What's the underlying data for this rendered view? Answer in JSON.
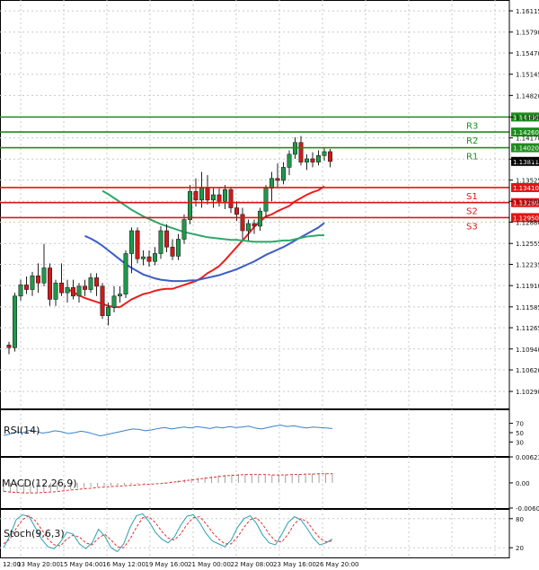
{
  "chart_data": {
    "type": "candlestick",
    "price_axis": {
      "range": [
        1.1003,
        1.16281
      ],
      "ticks": [
        "1.16115",
        "1.15790",
        "1.15470",
        "1.15145",
        "1.14820",
        "1.14490",
        "1.14170",
        "1.13845",
        "1.13525",
        "1.13200",
        "1.12880",
        "1.12555",
        "1.12235",
        "1.11910",
        "1.11585",
        "1.11265",
        "1.10940",
        "1.10620",
        "1.10290"
      ]
    },
    "time_axis": {
      "labels": [
        "12:00",
        "13 May 20:00",
        "15 May 04:00",
        "16 May 12:00",
        "19 May 16:00",
        "21 May 00:00",
        "22 May 08:00",
        "23 May 16:00",
        "26 May 20:00"
      ]
    },
    "candles": [
      {
        "o": 1.11,
        "h": 1.1105,
        "l": 1.1086,
        "c": 1.1096
      },
      {
        "o": 1.1096,
        "h": 1.118,
        "l": 1.109,
        "c": 1.1175
      },
      {
        "o": 1.1175,
        "h": 1.12,
        "l": 1.1168,
        "c": 1.1192
      },
      {
        "o": 1.1192,
        "h": 1.1205,
        "l": 1.1178,
        "c": 1.1185
      },
      {
        "o": 1.1185,
        "h": 1.1212,
        "l": 1.1175,
        "c": 1.1206
      },
      {
        "o": 1.1206,
        "h": 1.1225,
        "l": 1.118,
        "c": 1.1195
      },
      {
        "o": 1.1195,
        "h": 1.1255,
        "l": 1.119,
        "c": 1.1218
      },
      {
        "o": 1.1218,
        "h": 1.1225,
        "l": 1.116,
        "c": 1.117
      },
      {
        "o": 1.117,
        "h": 1.12,
        "l": 1.116,
        "c": 1.1195
      },
      {
        "o": 1.1195,
        "h": 1.1225,
        "l": 1.1175,
        "c": 1.118
      },
      {
        "o": 1.118,
        "h": 1.12,
        "l": 1.1165,
        "c": 1.1188
      },
      {
        "o": 1.1188,
        "h": 1.12,
        "l": 1.117,
        "c": 1.1175
      },
      {
        "o": 1.1175,
        "h": 1.1195,
        "l": 1.1165,
        "c": 1.119
      },
      {
        "o": 1.119,
        "h": 1.12,
        "l": 1.1175,
        "c": 1.1185
      },
      {
        "o": 1.1185,
        "h": 1.121,
        "l": 1.118,
        "c": 1.1203
      },
      {
        "o": 1.1203,
        "h": 1.121,
        "l": 1.1175,
        "c": 1.119
      },
      {
        "o": 1.119,
        "h": 1.1195,
        "l": 1.114,
        "c": 1.1145
      },
      {
        "o": 1.1145,
        "h": 1.1165,
        "l": 1.113,
        "c": 1.1158
      },
      {
        "o": 1.1158,
        "h": 1.119,
        "l": 1.115,
        "c": 1.1175
      },
      {
        "o": 1.1175,
        "h": 1.119,
        "l": 1.1165,
        "c": 1.1178
      },
      {
        "o": 1.1178,
        "h": 1.1245,
        "l": 1.1172,
        "c": 1.124
      },
      {
        "o": 1.124,
        "h": 1.128,
        "l": 1.121,
        "c": 1.1275
      },
      {
        "o": 1.1275,
        "h": 1.128,
        "l": 1.1225,
        "c": 1.1232
      },
      {
        "o": 1.1232,
        "h": 1.1245,
        "l": 1.1222,
        "c": 1.1235
      },
      {
        "o": 1.1235,
        "h": 1.1245,
        "l": 1.122,
        "c": 1.1228
      },
      {
        "o": 1.1228,
        "h": 1.125,
        "l": 1.1222,
        "c": 1.124
      },
      {
        "o": 1.124,
        "h": 1.1282,
        "l": 1.1232,
        "c": 1.1275
      },
      {
        "o": 1.1275,
        "h": 1.1285,
        "l": 1.1242,
        "c": 1.125
      },
      {
        "o": 1.125,
        "h": 1.1262,
        "l": 1.123,
        "c": 1.1236
      },
      {
        "o": 1.1236,
        "h": 1.127,
        "l": 1.123,
        "c": 1.1262
      },
      {
        "o": 1.1262,
        "h": 1.13,
        "l": 1.1255,
        "c": 1.1292
      },
      {
        "o": 1.1292,
        "h": 1.1345,
        "l": 1.1285,
        "c": 1.1335
      },
      {
        "o": 1.1335,
        "h": 1.1355,
        "l": 1.1312,
        "c": 1.1322
      },
      {
        "o": 1.1322,
        "h": 1.1365,
        "l": 1.131,
        "c": 1.134
      },
      {
        "o": 1.134,
        "h": 1.136,
        "l": 1.1315,
        "c": 1.1322
      },
      {
        "o": 1.1322,
        "h": 1.134,
        "l": 1.131,
        "c": 1.133
      },
      {
        "o": 1.133,
        "h": 1.134,
        "l": 1.1312,
        "c": 1.132
      },
      {
        "o": 1.132,
        "h": 1.1345,
        "l": 1.1308,
        "c": 1.1338
      },
      {
        "o": 1.1338,
        "h": 1.1342,
        "l": 1.1302,
        "c": 1.131
      },
      {
        "o": 1.131,
        "h": 1.132,
        "l": 1.129,
        "c": 1.13
      },
      {
        "o": 1.13,
        "h": 1.131,
        "l": 1.1262,
        "c": 1.1275
      },
      {
        "o": 1.1275,
        "h": 1.1292,
        "l": 1.126,
        "c": 1.1286
      },
      {
        "o": 1.1286,
        "h": 1.1292,
        "l": 1.127,
        "c": 1.1282
      },
      {
        "o": 1.1282,
        "h": 1.131,
        "l": 1.1275,
        "c": 1.1305
      },
      {
        "o": 1.1305,
        "h": 1.1345,
        "l": 1.1295,
        "c": 1.134
      },
      {
        "o": 1.134,
        "h": 1.1365,
        "l": 1.132,
        "c": 1.1355
      },
      {
        "o": 1.1355,
        "h": 1.1378,
        "l": 1.134,
        "c": 1.1352
      },
      {
        "o": 1.1352,
        "h": 1.138,
        "l": 1.1346,
        "c": 1.1372
      },
      {
        "o": 1.1372,
        "h": 1.1398,
        "l": 1.136,
        "c": 1.1392
      },
      {
        "o": 1.1392,
        "h": 1.1418,
        "l": 1.1385,
        "c": 1.141
      },
      {
        "o": 1.141,
        "h": 1.142,
        "l": 1.1375,
        "c": 1.138
      },
      {
        "o": 1.138,
        "h": 1.1392,
        "l": 1.1368,
        "c": 1.1385
      },
      {
        "o": 1.1385,
        "h": 1.1395,
        "l": 1.1372,
        "c": 1.138
      },
      {
        "o": 1.138,
        "h": 1.1398,
        "l": 1.1375,
        "c": 1.139
      },
      {
        "o": 1.139,
        "h": 1.1403,
        "l": 1.1382,
        "c": 1.1396
      },
      {
        "o": 1.1396,
        "h": 1.14,
        "l": 1.1372,
        "c": 1.1381
      }
    ],
    "moving_averages": [
      {
        "color": "#ee1c1c",
        "values": [
          1.1186,
          1.1181,
          1.1176,
          1.1172,
          1.1169,
          1.1166,
          1.1163,
          1.116,
          1.1158,
          1.1158,
          1.1164,
          1.117,
          1.1174,
          1.1178,
          1.118,
          1.1183,
          1.1185,
          1.1186,
          1.1186,
          1.1189,
          1.1192,
          1.1195,
          1.1198,
          1.1203,
          1.121,
          1.1215,
          1.1221,
          1.123,
          1.124,
          1.125,
          1.126,
          1.127,
          1.1281,
          1.1289,
          1.1297,
          1.13,
          1.1305,
          1.1309,
          1.1313,
          1.132,
          1.1325,
          1.133,
          1.1334,
          1.1337,
          1.1343
        ]
      },
      {
        "color": "#3b5cc6",
        "values": [
          1.1267,
          1.1263,
          1.1258,
          1.1252,
          1.1245,
          1.1238,
          1.1231,
          1.1224,
          1.1218,
          1.1213,
          1.1208,
          1.1205,
          1.1202,
          1.12,
          1.1199,
          1.1198,
          1.1198,
          1.1198,
          1.1199,
          1.1199,
          1.1201,
          1.1203,
          1.1205,
          1.1207,
          1.121,
          1.1213,
          1.1216,
          1.122,
          1.1224,
          1.1228,
          1.1233,
          1.1238,
          1.1242,
          1.1246,
          1.125,
          1.1255,
          1.126,
          1.1265,
          1.127,
          1.1275,
          1.128,
          1.1287
        ]
      },
      {
        "color": "#2ea869",
        "values": [
          1.1336,
          1.1331,
          1.1325,
          1.1319,
          1.1313,
          1.1307,
          1.1302,
          1.1297,
          1.1293,
          1.1289,
          1.1285,
          1.1282,
          1.1279,
          1.1276,
          1.1273,
          1.1271,
          1.1269,
          1.1267,
          1.1265,
          1.1264,
          1.1263,
          1.1262,
          1.1261,
          1.1261,
          1.126,
          1.1259,
          1.1258,
          1.1258,
          1.1258,
          1.1258,
          1.1259,
          1.126,
          1.126,
          1.1262,
          1.1264,
          1.1266,
          1.1267,
          1.1268,
          1.1268
        ]
      }
    ],
    "levels": [
      {
        "name": "R3",
        "value": 1.1449,
        "label": "1.14490",
        "color": "#1e8c1e"
      },
      {
        "name": "R2",
        "value": 1.1426,
        "label": "1.14260",
        "color": "#1e8c1e"
      },
      {
        "name": "R1",
        "value": 1.1402,
        "label": "1.14020",
        "color": "#1e8c1e"
      },
      {
        "name": "S1",
        "value": 1.1341,
        "label": "1.13410",
        "color": "#e01414"
      },
      {
        "name": "S2",
        "value": 1.1318,
        "label": "1.13180",
        "color": "#e01414"
      },
      {
        "name": "S3",
        "value": 1.1295,
        "label": "1.12950",
        "color": "#e01414"
      }
    ],
    "current_price": {
      "value": 1.13811,
      "label": "1.13811"
    },
    "panels": {
      "rsi": {
        "label": "RSI(14)",
        "ticks": [
          "70",
          "50",
          "30"
        ],
        "range": [
          0,
          100
        ],
        "values": [
          44,
          47,
          52,
          50,
          55,
          53,
          49,
          51,
          54,
          52,
          48,
          50,
          53,
          51,
          47,
          43,
          46,
          49,
          52,
          55,
          58,
          57,
          54,
          56,
          59,
          61,
          58,
          60,
          62,
          60,
          63,
          61,
          59,
          62,
          60,
          63,
          61,
          62,
          64,
          60,
          58,
          61,
          64,
          66,
          63,
          65,
          62,
          60,
          62,
          61,
          60,
          59
        ]
      },
      "macd": {
        "label": "MACD(12,26,9)",
        "ticks": [
          "0.006235",
          "0.00",
          "-0.006049"
        ],
        "range": [
          -0.006049,
          0.006235
        ],
        "hist": [
          -0.0022,
          -0.0024,
          -0.0025,
          -0.0025,
          -0.0024,
          -0.0023,
          -0.0022,
          -0.002,
          -0.0018,
          -0.0016,
          -0.0015,
          -0.0014,
          -0.0012,
          -0.001,
          -0.0009,
          -0.0008,
          -0.0007,
          -0.0006,
          -0.0005,
          -0.0004,
          -0.0003,
          -0.0002,
          -0.0001,
          0.0,
          0.0002,
          0.0004,
          0.0006,
          0.0008,
          0.001,
          0.0012,
          0.0014,
          0.0016,
          0.0018,
          0.0019,
          0.002,
          0.0021,
          0.0021,
          0.0021,
          0.002,
          0.0019,
          0.0019,
          0.002,
          0.002,
          0.0021,
          0.0021,
          0.0022,
          0.0022,
          0.0023,
          0.0023,
          0.0023
        ],
        "signal": [
          -0.002,
          -0.0022,
          -0.0023,
          -0.0024,
          -0.0024,
          -0.0024,
          -0.0023,
          -0.0022,
          -0.0021,
          -0.0019,
          -0.0017,
          -0.0016,
          -0.0014,
          -0.0013,
          -0.0011,
          -0.001,
          -0.0009,
          -0.0008,
          -0.0007,
          -0.0006,
          -0.0005,
          -0.0004,
          -0.0003,
          -0.0002,
          -0.0001,
          0.0001,
          0.0003,
          0.0005,
          0.0007,
          0.0009,
          0.0011,
          0.0013,
          0.0015,
          0.0017,
          0.0018,
          0.0019,
          0.002,
          0.002,
          0.002,
          0.002,
          0.0019,
          0.0019,
          0.0019,
          0.002,
          0.002,
          0.0021,
          0.0021,
          0.0022,
          0.0022,
          0.0022
        ]
      },
      "stoch": {
        "label": "Stoch(9,6,3)",
        "ticks": [
          "80",
          "20"
        ],
        "range": [
          0,
          100
        ],
        "k": [
          20,
          45,
          78,
          88,
          85,
          62,
          38,
          22,
          18,
          32,
          52,
          48,
          28,
          18,
          30,
          58,
          44,
          20,
          12,
          28,
          62,
          86,
          90,
          74,
          52,
          38,
          30,
          42,
          66,
          85,
          88,
          72,
          50,
          34,
          28,
          22,
          36,
          62,
          80,
          86,
          70,
          46,
          30,
          26,
          48,
          72,
          84,
          78,
          60,
          40,
          26,
          30,
          38
        ],
        "d": [
          28,
          38,
          60,
          78,
          86,
          76,
          58,
          38,
          26,
          24,
          38,
          46,
          42,
          30,
          26,
          40,
          48,
          36,
          22,
          20,
          38,
          62,
          82,
          84,
          72,
          54,
          40,
          36,
          48,
          68,
          82,
          84,
          70,
          52,
          38,
          28,
          28,
          42,
          62,
          78,
          82,
          68,
          48,
          34,
          32,
          48,
          70,
          80,
          74,
          56,
          40,
          32,
          34
        ]
      }
    }
  }
}
